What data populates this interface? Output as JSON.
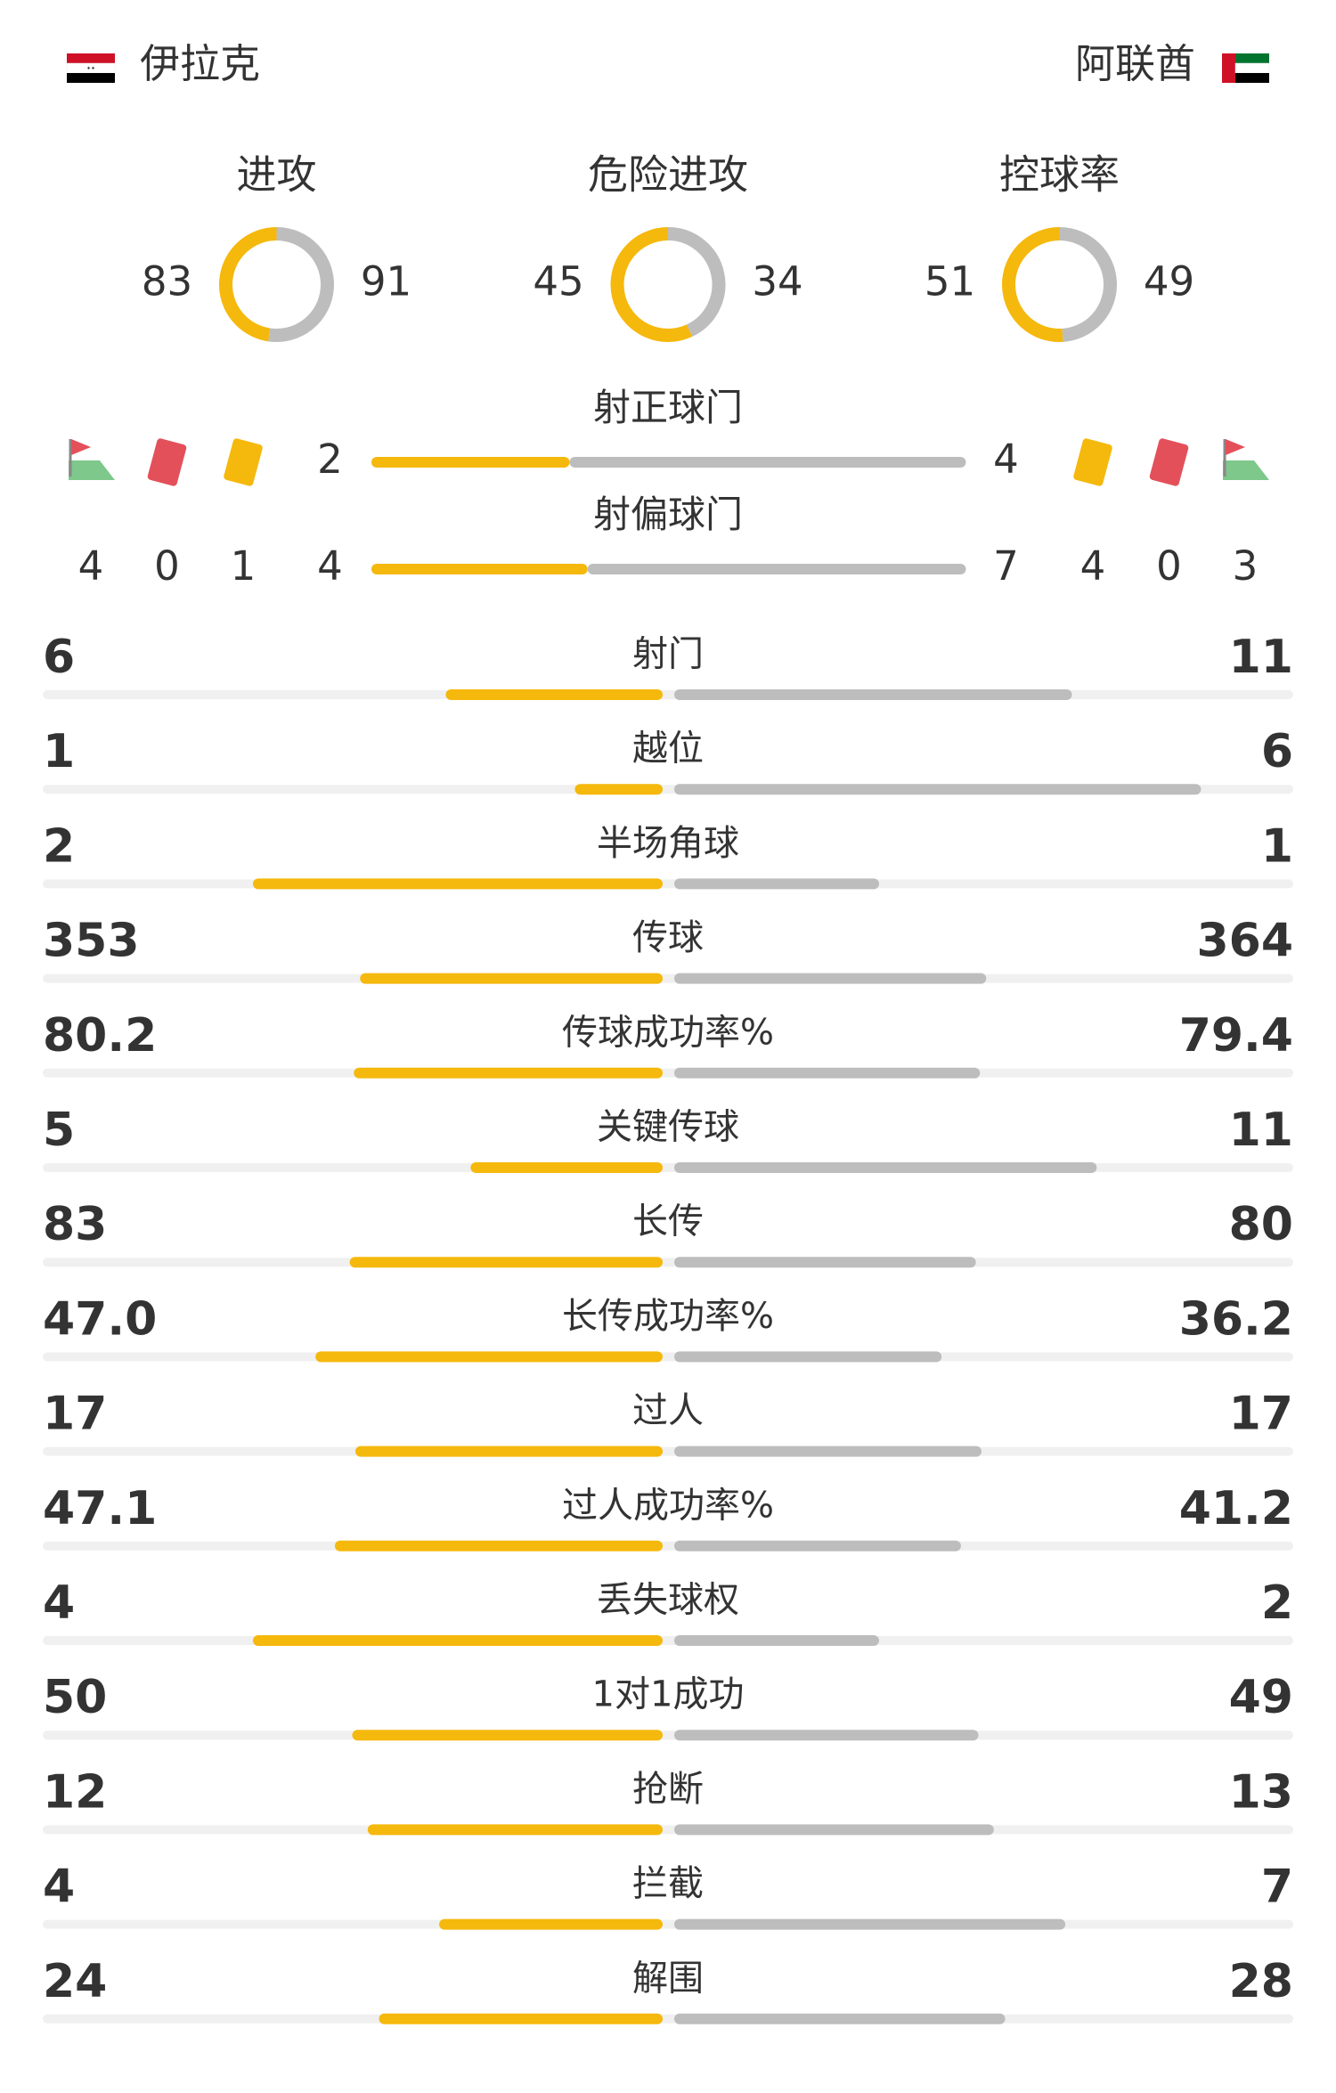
{
  "teams": {
    "home": "伊拉克",
    "away": "阿联酋"
  },
  "donuts": [
    {
      "label": "进攻",
      "home": 83,
      "away": 91
    },
    {
      "label": "危险进攻",
      "home": 45,
      "away": 34
    },
    {
      "label": "控球率",
      "home": 51,
      "away": 49
    }
  ],
  "shots": [
    {
      "label": "射正球门",
      "home": 2,
      "away": 4
    },
    {
      "label": "射偏球门",
      "home": 4,
      "away": 7
    }
  ],
  "discipline": {
    "home": {
      "corners": 4,
      "red_cards": 0,
      "yellow_cards": 1
    },
    "away": {
      "yellow_cards": 4,
      "red_cards": 0,
      "corners": 3
    }
  },
  "stats": [
    {
      "label": "射门",
      "home": 6,
      "away": 11
    },
    {
      "label": "越位",
      "home": 1,
      "away": 6
    },
    {
      "label": "半场角球",
      "home": 2,
      "away": 1
    },
    {
      "label": "传球",
      "home": 353,
      "away": 364
    },
    {
      "label": "传球成功率%",
      "home": 80.2,
      "away": 79.4
    },
    {
      "label": "关键传球",
      "home": 5,
      "away": 11
    },
    {
      "label": "长传",
      "home": 83,
      "away": 80
    },
    {
      "label": "长传成功率%",
      "home": {
        "value": 47,
        "label": "47.0"
      },
      "away": 36.2
    },
    {
      "label": "过人",
      "home": 17,
      "away": 17
    },
    {
      "label": "过人成功率%",
      "home": 47.1,
      "away": 41.2
    },
    {
      "label": "丢失球权",
      "home": 4,
      "away": 2
    },
    {
      "label": "1对1成功",
      "home": 50,
      "away": 49
    },
    {
      "label": "抢断",
      "home": 12,
      "away": 13
    },
    {
      "label": "拦截",
      "home": 4,
      "away": 7
    },
    {
      "label": "解围",
      "home": 24,
      "away": 28
    }
  ]
}
